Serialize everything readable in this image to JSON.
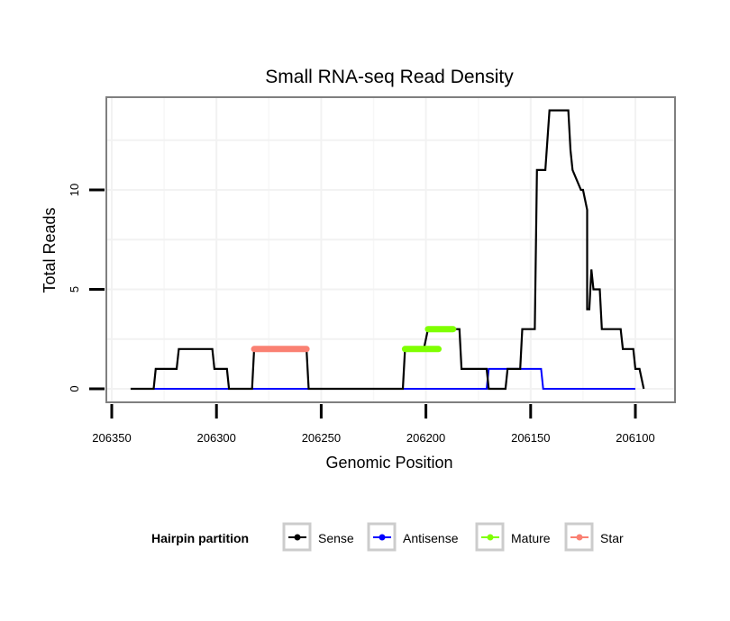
{
  "chart_data": {
    "type": "line",
    "title": "Small RNA-seq Read Density",
    "xlabel": "Genomic Position",
    "ylabel": "Total Reads",
    "x_reversed": true,
    "xlim": [
      206360,
      206080
    ],
    "ylim": [
      -0.6,
      14.5
    ],
    "xticks": [
      206350,
      206300,
      206250,
      206200,
      206150,
      206100
    ],
    "xtick_labels": [
      "206350",
      "206300",
      "206250",
      "206200",
      "206150",
      "206100"
    ],
    "yticks": [
      0,
      5,
      10
    ],
    "ytick_labels": [
      "0",
      "5",
      "10"
    ],
    "grid": true,
    "legend": {
      "title": "Hairpin partition",
      "position": "bottom",
      "entries": [
        {
          "label": "Sense",
          "color": "#000000"
        },
        {
          "label": "Antisense",
          "color": "#0000ff"
        },
        {
          "label": "Mature",
          "color": "#7fff00"
        },
        {
          "label": "Star",
          "color": "#fa8072"
        }
      ]
    },
    "series": [
      {
        "name": "Sense",
        "color": "#000000",
        "x": [
          206341,
          206330,
          206329,
          206319,
          206318,
          206302,
          206301,
          206295,
          206294,
          206283,
          206282,
          206257,
          206256,
          206211,
          206210,
          206201,
          206199,
          206184,
          206183,
          206171,
          206170,
          206162,
          206161,
          206155,
          206154,
          206148,
          206147,
          206143,
          206141,
          206132,
          206131,
          206130,
          206126,
          206125,
          206123,
          206123,
          206122,
          206121,
          206120,
          206119,
          206117,
          206116,
          206107,
          206106,
          206101,
          206100,
          206098,
          206096
        ],
        "y": [
          0,
          0,
          1,
          1,
          2,
          2,
          1,
          1,
          0,
          0,
          2,
          2,
          0,
          0,
          2,
          2,
          3,
          3,
          1,
          1,
          0,
          0,
          1,
          1,
          3,
          3,
          11,
          11,
          14,
          14,
          12,
          11,
          10,
          10,
          9,
          4,
          4,
          6,
          5,
          5,
          5,
          3,
          3,
          2,
          2,
          1,
          1,
          0
        ]
      },
      {
        "name": "Antisense",
        "color": "#0000ff",
        "x": [
          206330,
          206294,
          206282,
          206256,
          206211,
          206171,
          206170,
          206145,
          206144,
          206100
        ],
        "y": [
          0,
          0,
          0,
          0,
          0,
          0,
          1,
          1,
          0,
          0
        ]
      },
      {
        "name": "Mature",
        "color": "#7fff00",
        "segments": [
          {
            "x": [
              206210,
              206194
            ],
            "y": [
              2,
              2
            ]
          },
          {
            "x": [
              206199,
              206187
            ],
            "y": [
              3,
              3
            ]
          }
        ]
      },
      {
        "name": "Star",
        "color": "#fa8072",
        "segments": [
          {
            "x": [
              206282,
              206257
            ],
            "y": [
              2,
              2
            ]
          }
        ]
      }
    ]
  }
}
